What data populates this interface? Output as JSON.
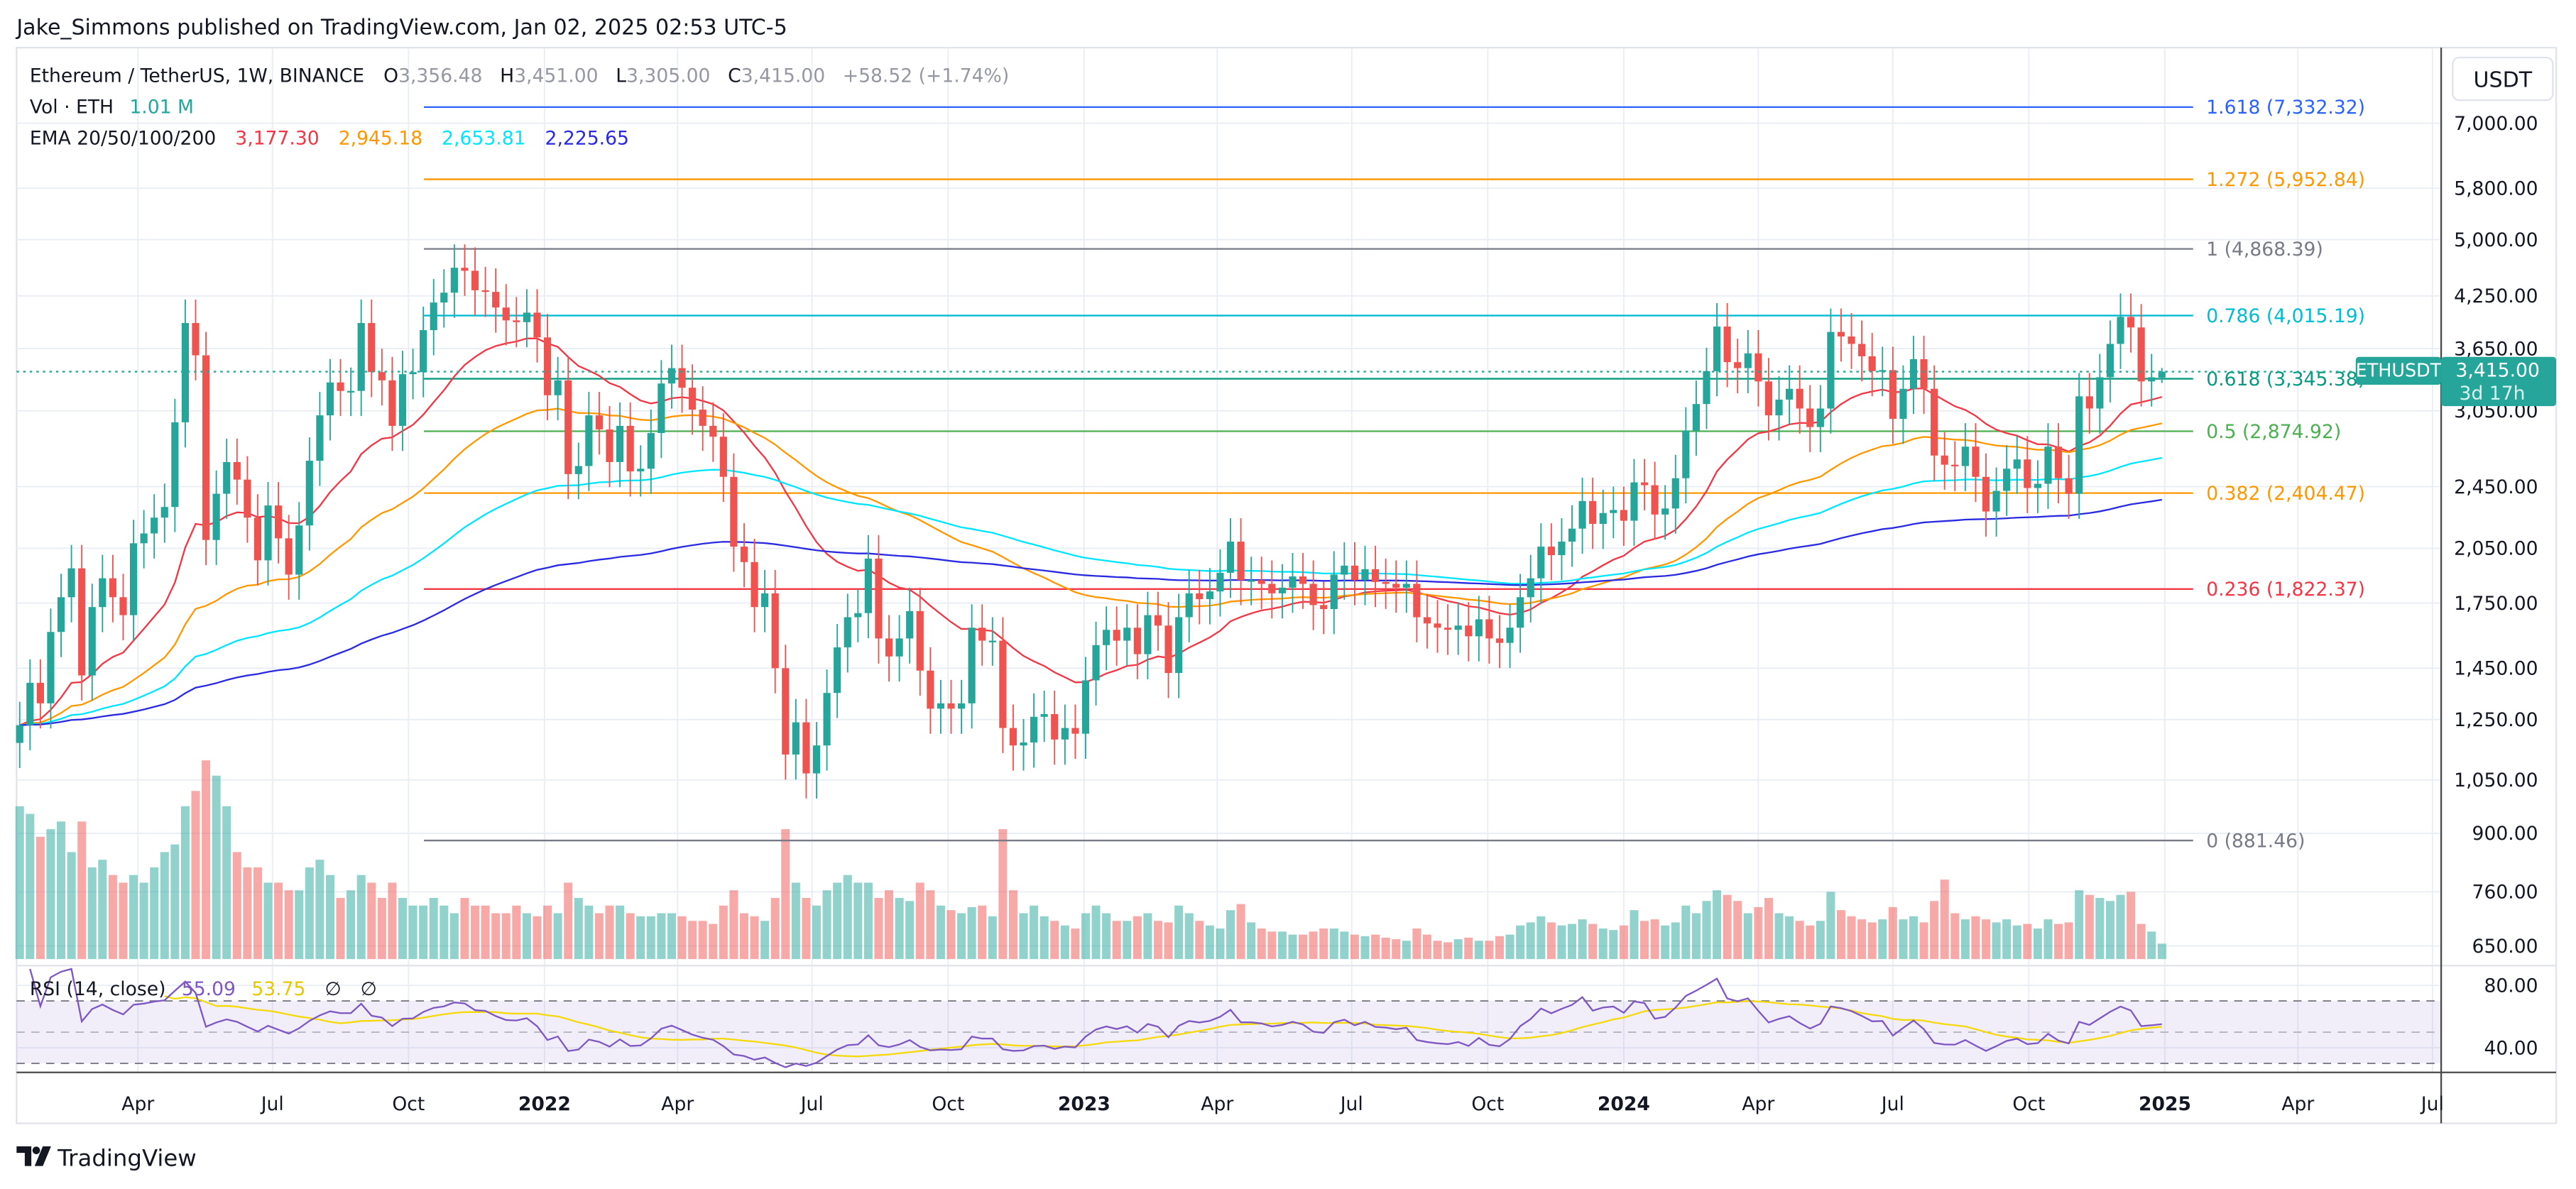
{
  "header": {
    "published": "Jake_Simmons published on TradingView.com, Jan 02, 2025 02:53 UTC-5",
    "symbol": "Ethereum / TetherUS, 1W, BINANCE",
    "o_label": "O",
    "o_value": "3,356.48",
    "h_label": "H",
    "h_value": "3,451.00",
    "l_label": "L",
    "l_value": "3,305.00",
    "c_label": "C",
    "c_value": "3,415.00",
    "change": "+58.52 (+1.74%)",
    "vol_label": "Vol · ETH",
    "vol_value": "1.01 M",
    "ema_label": "EMA 20/50/100/200",
    "ema_values": [
      "3,177.30",
      "2,945.18",
      "2,653.81",
      "2,225.65"
    ],
    "ema_colors": [
      "#f23645",
      "#ff9800",
      "#00e5ff",
      "#2a2ae0"
    ]
  },
  "rsi": {
    "label": "RSI (14, close)",
    "value": "55.09",
    "ma_value": "53.75",
    "na1": "∅",
    "na2": "∅",
    "line_color": "#7e57c2",
    "ma_color": "#f5d90a",
    "ticks": [
      "80.00",
      "40.00"
    ]
  },
  "currency_button": "USDT",
  "price_tag": {
    "symbol": "ETHUSDT",
    "price": "3,415.00",
    "countdown": "3d 17h",
    "color": "#26a69a"
  },
  "footer": {
    "logo_text": "TradingView"
  },
  "colors": {
    "up": "#26a69a",
    "down": "#ef5350"
  },
  "chart_data": {
    "type": "candlestick",
    "interval": "1W",
    "scale": "log",
    "grid": true,
    "ylim": [
      600,
      7600
    ],
    "price_ticks": [
      "7,000.00",
      "5,800.00",
      "5,000.00",
      "4,250.00",
      "3,650.00",
      "3,050.00",
      "2,450.00",
      "2,050.00",
      "1,750.00",
      "1,450.00",
      "1,250.00",
      "1,050.00",
      "900.00",
      "760.00",
      "650.00"
    ],
    "price_tick_values": [
      7000,
      5800,
      5000,
      4250,
      3650,
      3050,
      2450,
      2050,
      1750,
      1450,
      1250,
      1050,
      900,
      760,
      650
    ],
    "x_ticks": [
      "Apr",
      "Jul",
      "Oct",
      "2022",
      "Apr",
      "Jul",
      "Oct",
      "2023",
      "Apr",
      "Jul",
      "Oct",
      "2024",
      "Apr",
      "Jul",
      "Oct",
      "2025",
      "Apr",
      "Jul"
    ],
    "first_week": "2021-01-11",
    "last_price": 3415.0,
    "last_candle": {
      "open": 3356.48,
      "high": 3451.0,
      "low": 3305.0,
      "close": 3415.0
    },
    "close": [
      1230,
      1390,
      1310,
      1610,
      1780,
      1935,
      1420,
      1730,
      1880,
      1780,
      1690,
      2080,
      2140,
      2240,
      2310,
      2950,
      3930,
      3580,
      2100,
      2400,
      2630,
      2500,
      2240,
      1980,
      2320,
      2110,
      1900,
      2190,
      2640,
      3010,
      3310,
      3230,
      3230,
      3930,
      3410,
      3330,
      2920,
      3390,
      3410,
      3850,
      4170,
      4290,
      4610,
      4570,
      4320,
      4300,
      4110,
      3960,
      3940,
      4050,
      3770,
      3190,
      3330,
      2540,
      2600,
      3010,
      2890,
      2630,
      2920,
      2560,
      2580,
      2860,
      3300,
      3450,
      3260,
      3060,
      2920,
      2830,
      2520,
      2060,
      1970,
      1730,
      1800,
      1450,
      1130,
      1240,
      1070,
      1160,
      1350,
      1540,
      1680,
      1700,
      1990,
      1580,
      1500,
      1580,
      1710,
      1440,
      1290,
      1310,
      1290,
      1310,
      1630,
      1570,
      1570,
      1220,
      1160,
      1170,
      1260,
      1270,
      1180,
      1220,
      1200,
      1400,
      1550,
      1620,
      1570,
      1630,
      1510,
      1690,
      1640,
      1430,
      1680,
      1800,
      1770,
      1810,
      1910,
      2090,
      1870,
      1870,
      1850,
      1800,
      1830,
      1890,
      1850,
      1740,
      1720,
      1900,
      1950,
      1870,
      1930,
      1860,
      1850,
      1830,
      1850,
      1680,
      1650,
      1630,
      1620,
      1640,
      1590,
      1670,
      1580,
      1560,
      1630,
      1780,
      1880,
      2060,
      2010,
      2090,
      2170,
      2350,
      2200,
      2270,
      2290,
      2220,
      2480,
      2460,
      2260,
      2300,
      2510,
      2880,
      3110,
      3420,
      3890,
      3510,
      3450,
      3600,
      3320,
      3010,
      3150,
      3250,
      3070,
      2910,
      3070,
      3830,
      3780,
      3700,
      3570,
      3420,
      3430,
      2980,
      3250,
      3540,
      3250,
      2680,
      2610,
      2600,
      2750,
      2520,
      2280,
      2420,
      2580,
      2650,
      2440,
      2470,
      2750,
      2510,
      2400,
      3180,
      3070,
      3360,
      3700,
      4000,
      3880,
      3320,
      3360,
      3415
    ],
    "volume_millions": [
      10,
      9.5,
      8,
      8.5,
      9,
      7,
      9,
      6,
      6.5,
      5.5,
      5,
      5.5,
      5,
      6,
      7,
      7.5,
      10,
      11,
      13,
      12,
      10,
      7,
      6,
      6,
      5,
      5,
      4.5,
      4.5,
      6,
      6.5,
      5.5,
      4,
      4.5,
      5.5,
      5,
      4,
      5,
      4,
      3.5,
      3.5,
      4,
      3.5,
      3,
      4,
      3.5,
      3.5,
      3,
      3,
      3.5,
      3,
      2.8,
      3.5,
      3,
      5,
      4,
      3.5,
      3,
      3.5,
      3.5,
      3,
      2.8,
      2.8,
      3,
      3,
      2.8,
      2.5,
      2.5,
      2.3,
      3.5,
      4.5,
      3,
      2.8,
      2.5,
      4,
      8.5,
      5,
      4,
      3.5,
      4.5,
      5,
      5.5,
      5,
      5,
      4,
      4.5,
      4,
      3.8,
      5,
      4.5,
      3.5,
      3.2,
      3,
      3.4,
      3.5,
      2.8,
      8.5,
      4.5,
      3,
      3.5,
      2.8,
      2.5,
      2.2,
      2,
      3,
      3.5,
      3,
      2.5,
      2.5,
      2.8,
      3,
      2.5,
      2.4,
      3.5,
      3,
      2.5,
      2.2,
      2,
      3.2,
      3.6,
      2.4,
      2,
      1.8,
      1.8,
      1.6,
      1.6,
      1.8,
      2,
      2,
      1.8,
      1.6,
      1.5,
      1.6,
      1.4,
      1.3,
      1.2,
      2,
      1.6,
      1.2,
      1.1,
      1.3,
      1.4,
      1.2,
      1.2,
      1.5,
      1.6,
      2.2,
      2.4,
      2.8,
      2.4,
      2.2,
      2.3,
      2.6,
      2.3,
      2,
      1.9,
      2.2,
      3.2,
      2.5,
      2.6,
      2.2,
      2.4,
      3.5,
      3,
      3.8,
      4.5,
      4.2,
      3.8,
      3,
      3.4,
      4,
      3,
      2.8,
      2.5,
      2.2,
      2.5,
      4.4,
      3.2,
      2.8,
      2.6,
      2.4,
      2.6,
      3.4,
      2.6,
      2.8,
      2.4,
      3.8,
      5.2,
      3,
      2.6,
      2.8,
      2.6,
      2.4,
      2.6,
      2.2,
      2.3,
      2,
      2.6,
      2.3,
      2.4,
      4.5,
      4.2,
      4,
      3.8,
      4.2,
      4.4,
      2.3,
      1.8,
      1.01
    ],
    "ema_periods": [
      20,
      50,
      100,
      200
    ],
    "fib_levels": [
      {
        "label": "1.618 (7,332.32)",
        "price": 7332.32,
        "color": "#2962ff"
      },
      {
        "label": "1.272 (5,952.84)",
        "price": 5952.84,
        "color": "#ff9800"
      },
      {
        "label": "1 (4,868.39)",
        "price": 4868.39,
        "color": "#787b86"
      },
      {
        "label": "0.786 (4,015.19)",
        "price": 4015.19,
        "color": "#00bcd4"
      },
      {
        "label": "0.618 (3,345.38)",
        "price": 3345.38,
        "color": "#089981"
      },
      {
        "label": "0.5 (2,874.92)",
        "price": 2874.92,
        "color": "#4caf50"
      },
      {
        "label": "0.382 (2,404.47)",
        "price": 2404.47,
        "color": "#ff9800"
      },
      {
        "label": "0.236 (1,822.37)",
        "price": 1822.37,
        "color": "#f23645"
      },
      {
        "label": "0 (881.46)",
        "price": 881.46,
        "color": "#787b86"
      }
    ]
  }
}
